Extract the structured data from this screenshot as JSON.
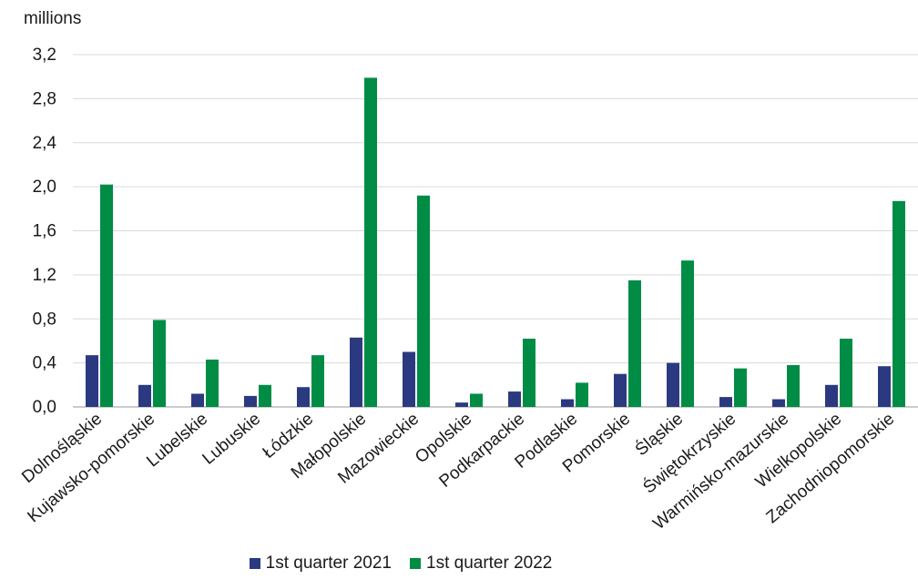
{
  "chart_data": {
    "type": "bar",
    "unit_label": "millions",
    "categories": [
      "Dolnośląskie",
      "Kujawsko-pomorskie",
      "Lubelskie",
      "Lubuskie",
      "Łódzkie",
      "Małopolskie",
      "Mazowieckie",
      "Opolskie",
      "Podkarpackie",
      "Podlaskie",
      "Pomorskie",
      "Śląskie",
      "Świętokrzyskie",
      "Warmińsko-mazurskie",
      "Wielkopolskie",
      "Zachodniopomorskie"
    ],
    "series": [
      {
        "name": "1st quarter 2021",
        "color": "#2b3a80",
        "values": [
          0.47,
          0.2,
          0.12,
          0.1,
          0.18,
          0.63,
          0.5,
          0.04,
          0.14,
          0.07,
          0.3,
          0.4,
          0.09,
          0.07,
          0.2,
          0.37
        ]
      },
      {
        "name": "1st quarter 2022",
        "color": "#008c45",
        "values": [
          2.02,
          0.79,
          0.43,
          0.2,
          0.47,
          2.99,
          1.92,
          0.12,
          0.62,
          0.22,
          1.15,
          1.33,
          0.35,
          0.38,
          0.62,
          1.87
        ]
      }
    ],
    "ylim": [
      0,
      3.2
    ],
    "yticks": [
      "0,0",
      "0,4",
      "0,8",
      "1,2",
      "1,6",
      "2,0",
      "2,4",
      "2,8",
      "3,2"
    ],
    "grid": true,
    "legend_position": "bottom"
  }
}
